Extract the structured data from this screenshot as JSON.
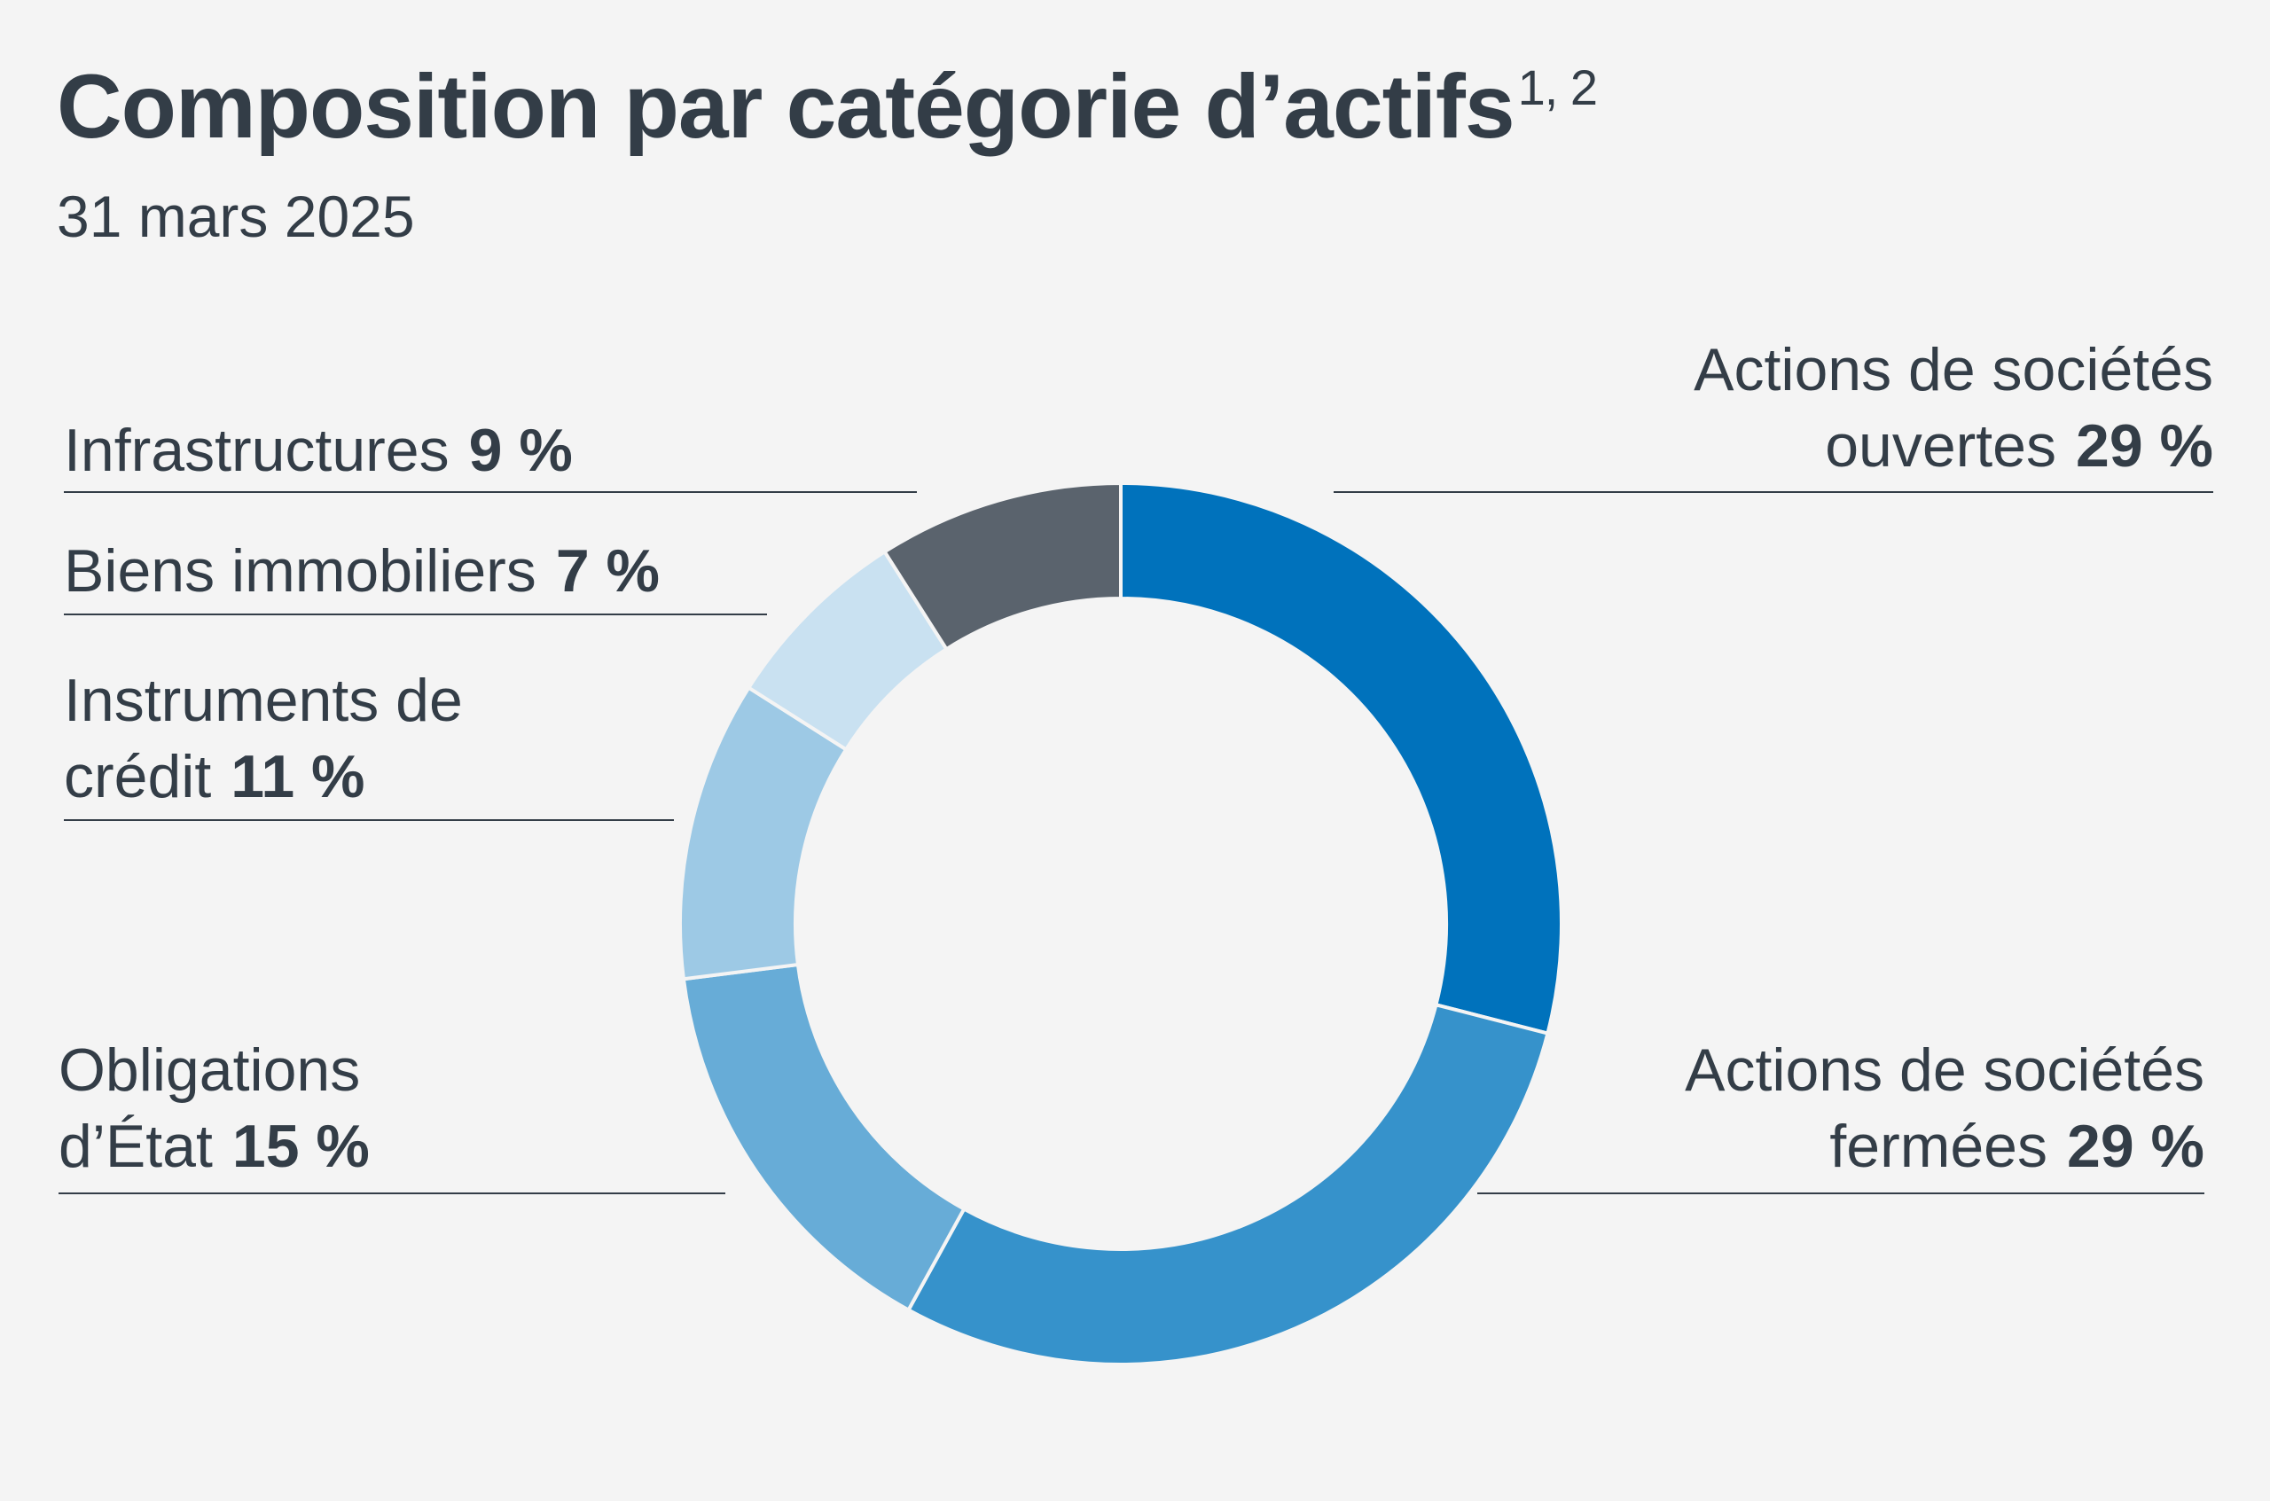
{
  "chart_data": {
    "type": "pie",
    "title": "Composition par catégorie d’actifs",
    "title_superscript": "1, 2",
    "subtitle": "31 mars 2025",
    "unit": "%",
    "slices": [
      {
        "label_lines": [
          "Actions de sociétés",
          "ouvertes"
        ],
        "value": 29,
        "value_text": "29 %",
        "color": "#0072bc"
      },
      {
        "label_lines": [
          "Actions de sociétés",
          "fermées"
        ],
        "value": 29,
        "value_text": "29 %",
        "color": "#3692cb"
      },
      {
        "label_lines": [
          "Obligations",
          "d’État"
        ],
        "value": 15,
        "value_text": "15 %",
        "color": "#67acd7"
      },
      {
        "label_lines": [
          "Instruments de",
          "crédit"
        ],
        "value": 11,
        "value_text": "11 %",
        "color": "#9dc9e5"
      },
      {
        "label_lines": [
          "Biens immobiliers"
        ],
        "value": 7,
        "value_text": "7 %",
        "color": "#c9e1f1"
      },
      {
        "label_lines": [
          "Infrastructures"
        ],
        "value": 9,
        "value_text": "9 %",
        "color": "#5a636d"
      }
    ]
  }
}
